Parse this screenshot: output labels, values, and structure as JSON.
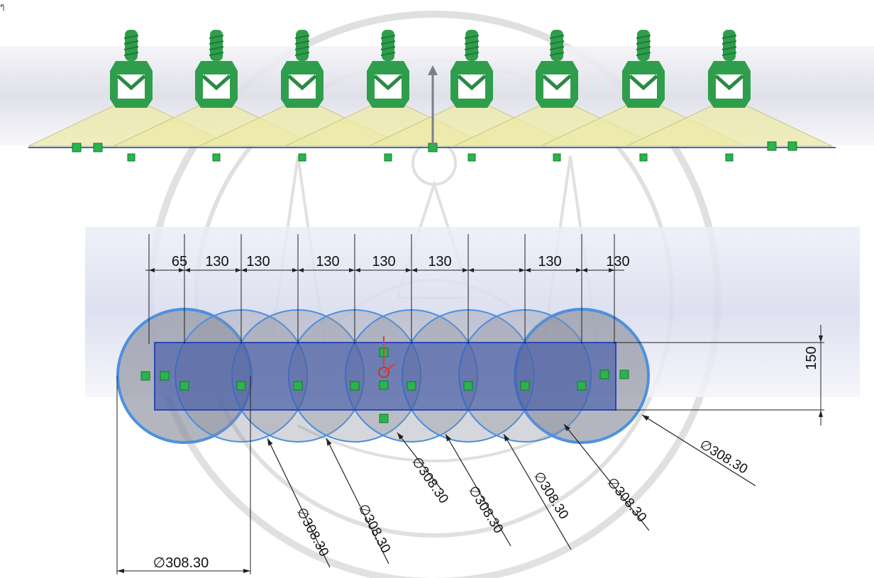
{
  "page_mark": "ๆ",
  "top_view": {
    "nozzle_count": 8,
    "spray_fill": "#ece9a6",
    "nozzle_color": "#2f9e4c",
    "baseline_color": "#3a67c8",
    "marker_color": "#2bb34c"
  },
  "plan_view": {
    "spacing_labels": [
      "65",
      "130",
      "130",
      "130",
      "130",
      "130",
      "130",
      "130"
    ],
    "height_label": "150",
    "diameter_labels": [
      "∅308.30",
      "∅308.30",
      "∅308.30",
      "∅308.30",
      "∅308.30",
      "∅308.30",
      "∅308.30",
      "∅308.30"
    ],
    "circle_fill": "#8a8d9a",
    "circle_stroke": "#4a8fe0",
    "rect_fill": "#3550a8",
    "dim_color": "#222222"
  }
}
